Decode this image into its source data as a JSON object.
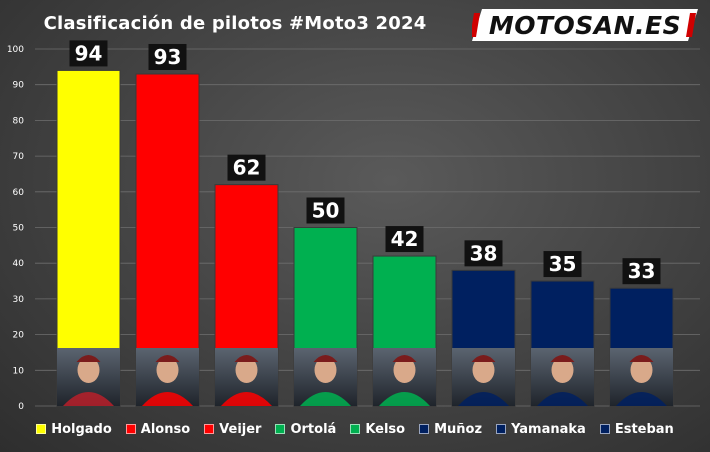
{
  "logo_text": "MOTOSAN.ES",
  "chart_data": {
    "type": "bar",
    "title": "Clasificación de pilotos #Moto3 2024",
    "categories": [
      "Holgado",
      "Alonso",
      "Veijer",
      "Ortolá",
      "Kelso",
      "Muñoz",
      "Yamanaka",
      "Esteban"
    ],
    "values": [
      94,
      93,
      62,
      50,
      42,
      38,
      35,
      33
    ],
    "colors": [
      "#ffff00",
      "#ff0000",
      "#ff0000",
      "#00b050",
      "#00b050",
      "#002060",
      "#002060",
      "#002060"
    ],
    "ylim": [
      0,
      100
    ],
    "yticks": [
      0,
      10,
      20,
      30,
      40,
      50,
      60,
      70,
      80,
      90,
      100
    ],
    "grid": true,
    "legend": "bottom"
  }
}
